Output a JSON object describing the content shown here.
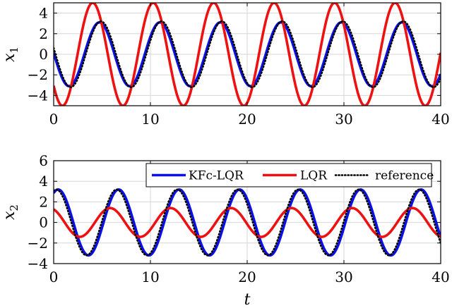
{
  "chart_data": [
    {
      "type": "line",
      "ylabel": "x1",
      "ylabel_main": "x",
      "ylabel_sub": "1",
      "xlabel": "",
      "xlim": [
        0,
        40
      ],
      "ylim": [
        -5,
        5
      ],
      "x_ticks": [
        "0",
        "10",
        "20",
        "30",
        "40"
      ],
      "y_ticks": [
        "4",
        "2",
        "0",
        "−2",
        "−4"
      ],
      "y_tick_values": [
        4,
        2,
        0,
        -2,
        -4
      ],
      "grid": true,
      "series": [
        {
          "name": "KFc-LQR",
          "color": "#0a10e6",
          "style": "solid",
          "formula": {
            "amplitude": 3.1,
            "period": 6.25,
            "phase": 3.1,
            "offset": 0
          }
        },
        {
          "name": "LQR",
          "color": "#ee1111",
          "style": "solid",
          "formula": {
            "amplitude": 5.0,
            "period": 6.25,
            "phase": 3.8,
            "offset": 0
          }
        },
        {
          "name": "reference",
          "color": "#000000",
          "style": "dotted",
          "formula": {
            "amplitude": 3.2,
            "period": 6.25,
            "phase": 2.95,
            "offset": 0
          }
        }
      ]
    },
    {
      "type": "line",
      "ylabel": "x2",
      "ylabel_main": "x",
      "ylabel_sub": "2",
      "xlabel": "t",
      "xlim": [
        0,
        40
      ],
      "ylim": [
        -4,
        6
      ],
      "x_ticks": [
        "0",
        "10",
        "20",
        "30",
        "40"
      ],
      "y_ticks": [
        "6",
        "4",
        "2",
        "0",
        "−2",
        "−4"
      ],
      "y_tick_values": [
        6,
        4,
        2,
        0,
        -2,
        -4
      ],
      "grid": true,
      "legend": {
        "placement": "top-right",
        "entries": [
          "KFc-LQR",
          "LQR",
          "reference"
        ]
      },
      "series": [
        {
          "name": "KFc-LQR",
          "color": "#0a10e6",
          "style": "solid",
          "formula": {
            "amplitude": 3.2,
            "period": 6.25,
            "phase": 1.1,
            "offset": 0
          }
        },
        {
          "name": "LQR",
          "color": "#ee1111",
          "style": "solid",
          "formula": {
            "amplitude": 1.4,
            "period": 6.25,
            "phase": 2.0,
            "offset": 0
          }
        },
        {
          "name": "reference",
          "color": "#000000",
          "style": "dotted",
          "formula": {
            "amplitude": 3.2,
            "period": 6.25,
            "phase": 1.3,
            "offset": 0
          }
        }
      ]
    }
  ]
}
